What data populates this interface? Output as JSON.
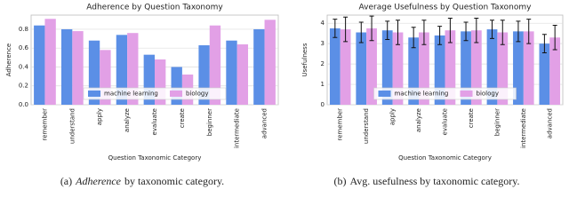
{
  "chart_data": [
    {
      "type": "bar",
      "title": "Adherence by Question Taxonomy",
      "ylabel": "Adherence",
      "xlabel": "Question Taxonomic Category",
      "categories": [
        "remember",
        "understand",
        "apply",
        "analyze",
        "evaluate",
        "create",
        "beginner",
        "intermediate",
        "advanced"
      ],
      "series": [
        {
          "name": "machine learning",
          "color": "#5b8fe6",
          "values": [
            0.84,
            0.8,
            0.68,
            0.74,
            0.53,
            0.4,
            0.63,
            0.68,
            0.8
          ]
        },
        {
          "name": "biology",
          "color": "#e2a0e6",
          "values": [
            0.91,
            0.78,
            0.58,
            0.76,
            0.48,
            0.32,
            0.84,
            0.64,
            0.9
          ]
        }
      ],
      "ylim": [
        0,
        0.95
      ],
      "yticks": [
        {
          "value": 0,
          "label": "0.0"
        },
        0.2,
        0.4,
        0.6,
        0.8
      ],
      "grid": true,
      "legend": "lower center",
      "caption": {
        "label": "(a)",
        "emphasis": "Adherence",
        "text": "by taxonomic category."
      }
    },
    {
      "type": "bar",
      "title": "Average Usefulness by Question Taxonomy",
      "ylabel": "Usefulness",
      "xlabel": "Question Taxonomic Category",
      "categories": [
        "remember",
        "understand",
        "apply",
        "analyze",
        "evaluate",
        "create",
        "beginner",
        "intermediate",
        "advanced"
      ],
      "series": [
        {
          "name": "machine learning",
          "color": "#5b8fe6",
          "values": [
            3.75,
            3.55,
            3.65,
            3.3,
            3.4,
            3.6,
            3.7,
            3.6,
            3.0
          ],
          "errors": [
            0.45,
            0.5,
            0.45,
            0.5,
            0.45,
            0.45,
            0.45,
            0.5,
            0.45
          ]
        },
        {
          "name": "biology",
          "color": "#e2a0e6",
          "values": [
            3.7,
            3.75,
            3.55,
            3.55,
            3.65,
            3.65,
            3.55,
            3.6,
            3.3
          ],
          "errors": [
            0.6,
            0.6,
            0.6,
            0.6,
            0.6,
            0.6,
            0.6,
            0.6,
            0.6
          ]
        }
      ],
      "ylim": [
        0,
        4.4
      ],
      "yticks": [
        0,
        1,
        2,
        3,
        4
      ],
      "grid": true,
      "legend": "lower center",
      "caption": {
        "label": "(b)",
        "text": "Avg. usefulness by taxonomic category."
      }
    }
  ]
}
